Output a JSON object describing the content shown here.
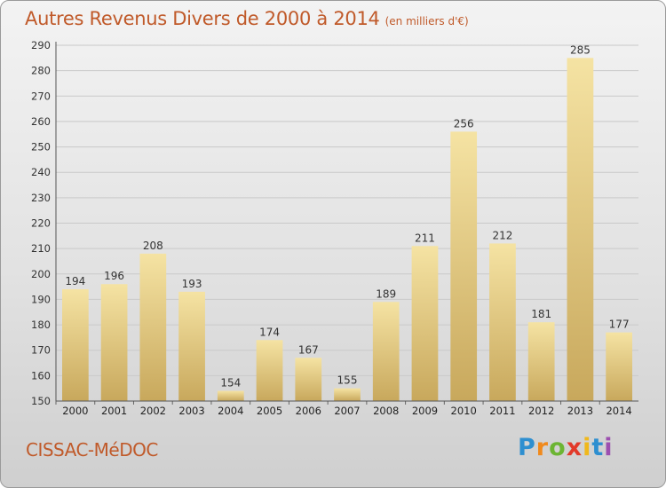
{
  "header": {
    "title": "Autres Revenus Divers de 2000 à 2014",
    "unit": "(en milliers d'€)"
  },
  "footer": {
    "commune": "CISSAC-MéDOC",
    "logo": "Proxiti"
  },
  "colors": {
    "title": "#c05a2a",
    "bar_light": "#f5e3a3",
    "bar_dark": "#c8a85c"
  },
  "chart_data": {
    "type": "bar",
    "title": "Autres Revenus Divers de 2000 à 2014",
    "subtitle": "(en milliers d'€)",
    "xlabel": "",
    "ylabel": "",
    "categories": [
      "2000",
      "2001",
      "2002",
      "2003",
      "2004",
      "2005",
      "2006",
      "2007",
      "2008",
      "2009",
      "2010",
      "2011",
      "2012",
      "2013",
      "2014"
    ],
    "values": [
      194,
      196,
      208,
      193,
      154,
      174,
      167,
      155,
      189,
      211,
      256,
      212,
      181,
      285,
      177
    ],
    "ylim": [
      150,
      290
    ],
    "yticks": [
      150,
      160,
      170,
      180,
      190,
      200,
      210,
      220,
      230,
      240,
      250,
      260,
      270,
      280,
      290
    ],
    "grid": true,
    "legend": "none"
  }
}
